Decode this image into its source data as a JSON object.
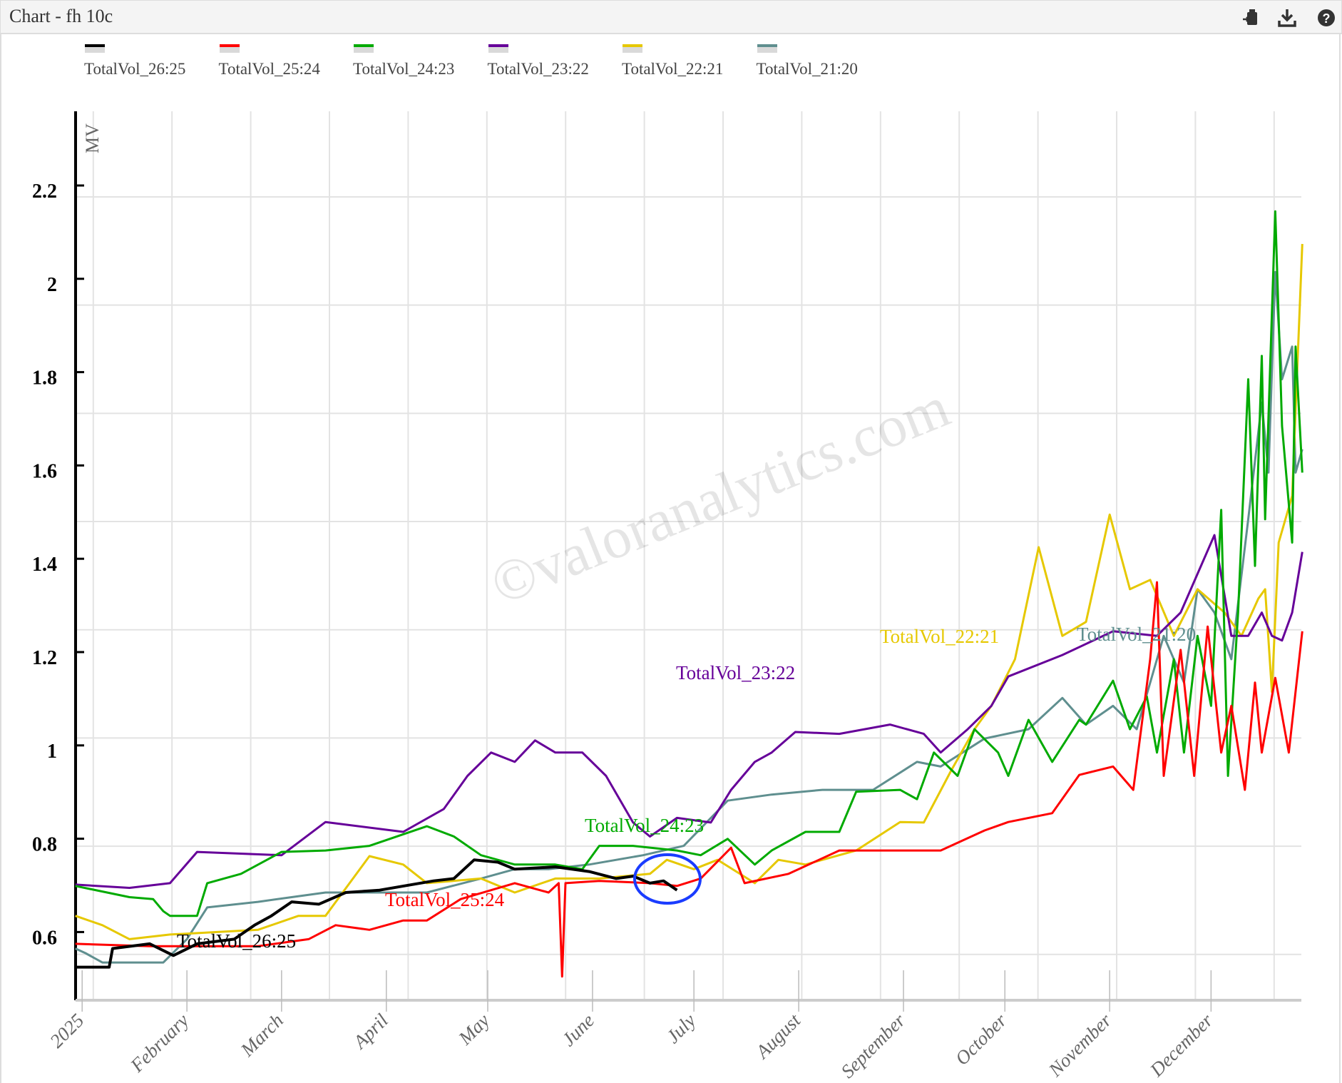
{
  "header": {
    "title": "Chart - fh 10c",
    "icons": [
      "save-icon",
      "download-icon",
      "help-icon"
    ]
  },
  "watermark": "©valoranalytics.com",
  "chart_data": {
    "type": "line",
    "title": "Chart - fh 10c",
    "xlabel": "",
    "ylabel": "MV",
    "ylim": [
      0.47,
      2.45
    ],
    "xlim_days": [
      -2,
      361
    ],
    "yticks": [
      "0.6",
      "0.8",
      "1",
      "1.2",
      "1.4",
      "1.6",
      "1.8",
      "2",
      "2.2"
    ],
    "ytick_values": [
      0.6,
      0.8,
      1,
      1.2,
      1.4,
      1.6,
      1.8,
      2,
      2.2
    ],
    "xticks": [
      "2025",
      "February",
      "March",
      "April",
      "May",
      "June",
      "July",
      "August",
      "September",
      "October",
      "November",
      "December"
    ],
    "xtick_days": [
      0,
      31,
      59,
      90,
      120,
      151,
      181,
      212,
      243,
      273,
      304,
      334
    ],
    "legend_position": "top-left",
    "grid": true,
    "series": [
      {
        "name": "TotalVol_26:25",
        "color": "#000000",
        "width": 4,
        "label": "TotalVol_26:25",
        "points": [
          [
            -2,
            0.54
          ],
          [
            8,
            0.54
          ],
          [
            9,
            0.58
          ],
          [
            20,
            0.59
          ],
          [
            27,
            0.565
          ],
          [
            34,
            0.59
          ],
          [
            45,
            0.6
          ],
          [
            51,
            0.63
          ],
          [
            56,
            0.65
          ],
          [
            62,
            0.68
          ],
          [
            70,
            0.675
          ],
          [
            78,
            0.7
          ],
          [
            88,
            0.705
          ],
          [
            96,
            0.715
          ],
          [
            104,
            0.725
          ],
          [
            110,
            0.73
          ],
          [
            116,
            0.77
          ],
          [
            123,
            0.765
          ],
          [
            128,
            0.75
          ],
          [
            140,
            0.755
          ],
          [
            150,
            0.745
          ],
          [
            158,
            0.73
          ],
          [
            163,
            0.735
          ],
          [
            168,
            0.72
          ],
          [
            172,
            0.725
          ],
          [
            176,
            0.705
          ]
        ]
      },
      {
        "name": "TotalVol_25:24",
        "color": "#ff0000",
        "width": 3,
        "label": "TotalVol_25:24",
        "points": [
          [
            -2,
            0.59
          ],
          [
            20,
            0.585
          ],
          [
            52,
            0.585
          ],
          [
            67,
            0.6
          ],
          [
            75,
            0.63
          ],
          [
            85,
            0.62
          ],
          [
            95,
            0.64
          ],
          [
            102,
            0.64
          ],
          [
            112,
            0.686
          ],
          [
            128,
            0.72
          ],
          [
            138,
            0.7
          ],
          [
            141,
            0.72
          ],
          [
            142,
            0.52
          ],
          [
            143,
            0.72
          ],
          [
            153,
            0.725
          ],
          [
            168,
            0.72
          ],
          [
            176,
            0.714
          ],
          [
            183,
            0.73
          ],
          [
            192,
            0.796
          ],
          [
            196,
            0.72
          ],
          [
            209,
            0.74
          ],
          [
            224,
            0.79
          ],
          [
            242,
            0.79
          ],
          [
            254,
            0.79
          ],
          [
            267,
            0.833
          ],
          [
            274,
            0.851
          ],
          [
            287,
            0.87
          ],
          [
            295,
            0.952
          ],
          [
            305,
            0.97
          ],
          [
            311,
            0.92
          ],
          [
            316,
            1.2
          ],
          [
            318,
            1.365
          ],
          [
            320,
            0.95
          ],
          [
            325,
            1.22
          ],
          [
            329,
            0.95
          ],
          [
            333,
            1.27
          ],
          [
            337,
            1.0
          ],
          [
            340,
            1.1
          ],
          [
            344,
            0.92
          ],
          [
            347,
            1.15
          ],
          [
            349,
            1.0
          ],
          [
            353,
            1.16
          ],
          [
            357,
            1.0
          ],
          [
            361,
            1.26
          ]
        ]
      },
      {
        "name": "TotalVol_24:23",
        "color": "#00aa00",
        "width": 3,
        "label": "TotalVol_24:23",
        "points": [
          [
            -2,
            0.714
          ],
          [
            14,
            0.69
          ],
          [
            21,
            0.686
          ],
          [
            24,
            0.66
          ],
          [
            26,
            0.65
          ],
          [
            34,
            0.65
          ],
          [
            37,
            0.72
          ],
          [
            47,
            0.74
          ],
          [
            59,
            0.787
          ],
          [
            72,
            0.79
          ],
          [
            85,
            0.8
          ],
          [
            102,
            0.842
          ],
          [
            110,
            0.82
          ],
          [
            118,
            0.78
          ],
          [
            128,
            0.76
          ],
          [
            140,
            0.76
          ],
          [
            148,
            0.75
          ],
          [
            153,
            0.8
          ],
          [
            163,
            0.8
          ],
          [
            176,
            0.79
          ],
          [
            183,
            0.78
          ],
          [
            191,
            0.815
          ],
          [
            199,
            0.76
          ],
          [
            204,
            0.79
          ],
          [
            214,
            0.83
          ],
          [
            224,
            0.83
          ],
          [
            229,
            0.916
          ],
          [
            242,
            0.92
          ],
          [
            247,
            0.9
          ],
          [
            252,
            1.0
          ],
          [
            259,
            0.95
          ],
          [
            264,
            1.05
          ],
          [
            271,
            1.0
          ],
          [
            274,
            0.95
          ],
          [
            280,
            1.07
          ],
          [
            287,
            0.98
          ],
          [
            295,
            1.07
          ],
          [
            297,
            1.06
          ],
          [
            305,
            1.154
          ],
          [
            310,
            1.05
          ],
          [
            315,
            1.12
          ],
          [
            318,
            1.0
          ],
          [
            323,
            1.2
          ],
          [
            326,
            1.0
          ],
          [
            330,
            1.25
          ],
          [
            334,
            1.1
          ],
          [
            337,
            1.52
          ],
          [
            339,
            0.95
          ],
          [
            342,
            1.3
          ],
          [
            345,
            1.8
          ],
          [
            347,
            1.4
          ],
          [
            349,
            1.85
          ],
          [
            350,
            1.5
          ],
          [
            353,
            2.16
          ],
          [
            355,
            1.7
          ],
          [
            358,
            1.45
          ],
          [
            359,
            1.87
          ],
          [
            361,
            1.6
          ]
        ]
      },
      {
        "name": "TotalVol_23:22",
        "color": "#660099",
        "width": 3,
        "label": "TotalVol_23:22",
        "points": [
          [
            -2,
            0.717
          ],
          [
            14,
            0.71
          ],
          [
            26,
            0.72
          ],
          [
            34,
            0.787
          ],
          [
            59,
            0.78
          ],
          [
            72,
            0.851
          ],
          [
            95,
            0.83
          ],
          [
            107,
            0.879
          ],
          [
            114,
            0.95
          ],
          [
            121,
            1.0
          ],
          [
            128,
            0.98
          ],
          [
            134,
            1.026
          ],
          [
            140,
            1.0
          ],
          [
            148,
            1.0
          ],
          [
            155,
            0.95
          ],
          [
            163,
            0.85
          ],
          [
            168,
            0.82
          ],
          [
            176,
            0.86
          ],
          [
            186,
            0.85
          ],
          [
            192,
            0.92
          ],
          [
            199,
            0.98
          ],
          [
            204,
            1.0
          ],
          [
            211,
            1.044
          ],
          [
            224,
            1.04
          ],
          [
            239,
            1.06
          ],
          [
            249,
            1.04
          ],
          [
            254,
            1.0
          ],
          [
            262,
            1.05
          ],
          [
            269,
            1.1
          ],
          [
            274,
            1.163
          ],
          [
            290,
            1.209
          ],
          [
            305,
            1.26
          ],
          [
            318,
            1.25
          ],
          [
            325,
            1.3
          ],
          [
            335,
            1.466
          ],
          [
            340,
            1.25
          ],
          [
            345,
            1.25
          ],
          [
            349,
            1.3
          ],
          [
            352,
            1.25
          ],
          [
            355,
            1.24
          ],
          [
            358,
            1.3
          ],
          [
            361,
            1.43
          ]
        ]
      },
      {
        "name": "TotalVol_22:21",
        "color": "#e6c800",
        "width": 3,
        "label": "TotalVol_22:21",
        "points": [
          [
            -2,
            0.65
          ],
          [
            6,
            0.63
          ],
          [
            14,
            0.6
          ],
          [
            26,
            0.61
          ],
          [
            52,
            0.62
          ],
          [
            64,
            0.65
          ],
          [
            72,
            0.65
          ],
          [
            85,
            0.778
          ],
          [
            95,
            0.76
          ],
          [
            102,
            0.72
          ],
          [
            118,
            0.73
          ],
          [
            128,
            0.7
          ],
          [
            140,
            0.73
          ],
          [
            153,
            0.73
          ],
          [
            168,
            0.74
          ],
          [
            173,
            0.77
          ],
          [
            181,
            0.75
          ],
          [
            188,
            0.77
          ],
          [
            199,
            0.72
          ],
          [
            206,
            0.77
          ],
          [
            214,
            0.76
          ],
          [
            229,
            0.79
          ],
          [
            242,
            0.851
          ],
          [
            249,
            0.85
          ],
          [
            257,
            0.96
          ],
          [
            264,
            1.05
          ],
          [
            269,
            1.1
          ],
          [
            276,
            1.2
          ],
          [
            283,
            1.44
          ],
          [
            290,
            1.25
          ],
          [
            297,
            1.28
          ],
          [
            304,
            1.51
          ],
          [
            310,
            1.35
          ],
          [
            316,
            1.37
          ],
          [
            323,
            1.25
          ],
          [
            330,
            1.35
          ],
          [
            338,
            1.3
          ],
          [
            343,
            1.25
          ],
          [
            348,
            1.33
          ],
          [
            350,
            1.35
          ],
          [
            352,
            1.13
          ],
          [
            354,
            1.45
          ],
          [
            358,
            1.55
          ],
          [
            361,
            2.09
          ]
        ]
      },
      {
        "name": "TotalVol_21:20",
        "color": "#5f8f8f",
        "width": 3,
        "label": "TotalVol_21:20",
        "points": [
          [
            -2,
            0.58
          ],
          [
            1,
            0.57
          ],
          [
            6,
            0.55
          ],
          [
            24,
            0.55
          ],
          [
            31,
            0.6
          ],
          [
            37,
            0.668
          ],
          [
            52,
            0.68
          ],
          [
            62,
            0.69
          ],
          [
            72,
            0.7
          ],
          [
            85,
            0.7
          ],
          [
            102,
            0.7
          ],
          [
            118,
            0.73
          ],
          [
            128,
            0.75
          ],
          [
            138,
            0.75
          ],
          [
            150,
            0.76
          ],
          [
            166,
            0.78
          ],
          [
            178,
            0.8
          ],
          [
            191,
            0.897
          ],
          [
            204,
            0.91
          ],
          [
            219,
            0.92
          ],
          [
            234,
            0.92
          ],
          [
            247,
            0.98
          ],
          [
            254,
            0.97
          ],
          [
            267,
            1.03
          ],
          [
            280,
            1.05
          ],
          [
            290,
            1.117
          ],
          [
            297,
            1.06
          ],
          [
            305,
            1.1
          ],
          [
            312,
            1.05
          ],
          [
            320,
            1.25
          ],
          [
            326,
            1.15
          ],
          [
            330,
            1.35
          ],
          [
            335,
            1.3
          ],
          [
            340,
            1.2
          ],
          [
            345,
            1.5
          ],
          [
            349,
            1.75
          ],
          [
            351,
            1.6
          ],
          [
            353,
            2.03
          ],
          [
            355,
            1.8
          ],
          [
            358,
            1.87
          ],
          [
            359,
            1.6
          ],
          [
            361,
            1.65
          ]
        ]
      }
    ]
  }
}
